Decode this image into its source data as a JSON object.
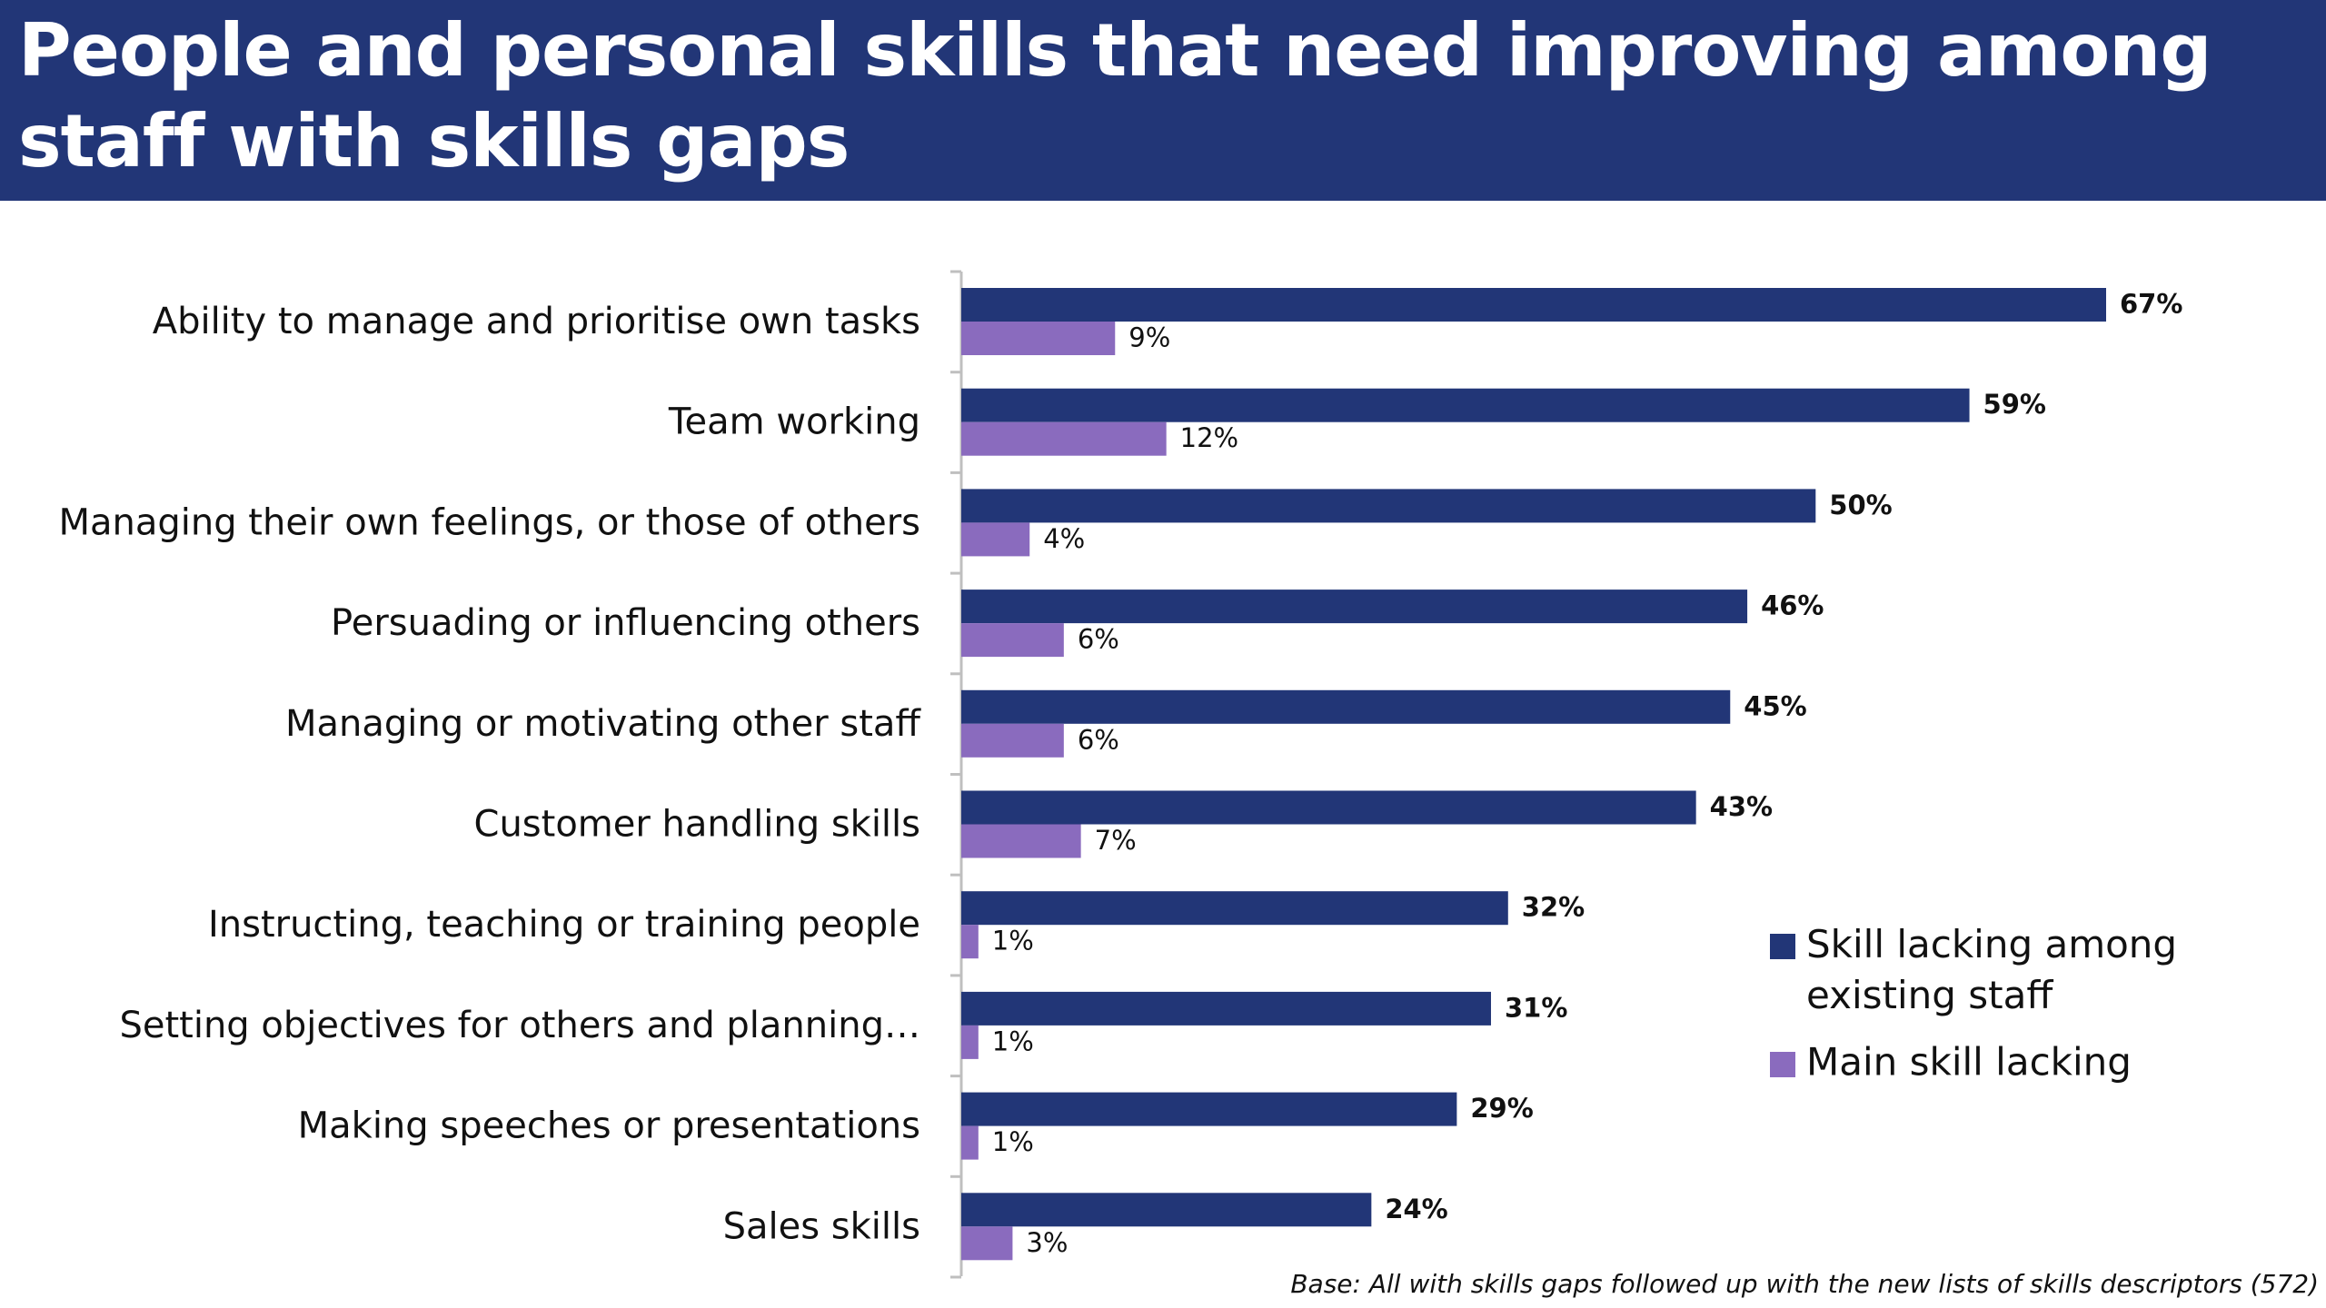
{
  "title": "People and personal skills that need improving among staff with skills gaps",
  "base_note": "Base: All with skills gaps followed up with the new lists of skills descriptors (572)",
  "colors": {
    "header_bg": "#223677",
    "series1": "#223677",
    "series2": "#8A6BBE"
  },
  "chart_data": {
    "type": "bar",
    "orientation": "horizontal",
    "xlim": [
      0,
      70
    ],
    "grid": false,
    "legend_position": "right",
    "categories": [
      "Ability to manage and prioritise own tasks",
      "Team working",
      "Managing their own feelings, or those of others",
      "Persuading or influencing others",
      "Managing or motivating other staff",
      "Customer handling skills",
      "Instructing, teaching or training people",
      "Setting objectives for others and planning…",
      "Making speeches or presentations",
      "Sales skills"
    ],
    "series": [
      {
        "name": "Skill lacking among existing staff",
        "color": "#223677",
        "values": [
          67,
          59,
          50,
          46,
          45,
          43,
          32,
          31,
          29,
          24
        ],
        "labels": [
          "67%",
          "59%",
          "50%",
          "46%",
          "45%",
          "43%",
          "32%",
          "31%",
          "29%",
          "24%"
        ]
      },
      {
        "name": "Main skill lacking",
        "color": "#8A6BBE",
        "values": [
          9,
          12,
          4,
          6,
          6,
          7,
          1,
          1,
          1,
          3
        ],
        "labels": [
          "9%",
          "12%",
          "4%",
          "6%",
          "6%",
          "7%",
          "1%",
          "1%",
          "1%",
          "3%"
        ]
      }
    ]
  }
}
